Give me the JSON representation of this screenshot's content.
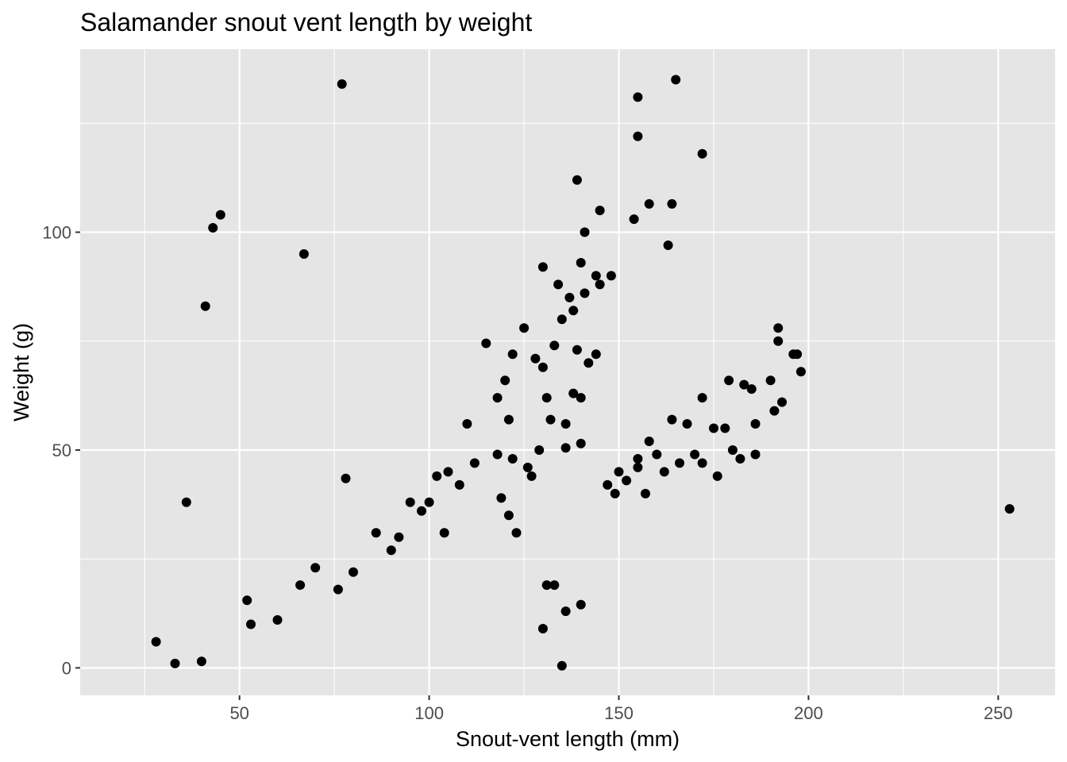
{
  "chart_data": {
    "type": "scatter",
    "title": "Salamander snout vent length by weight",
    "xlabel": "Snout-vent length (mm)",
    "ylabel": "Weight (g)",
    "xlim": [
      8,
      265
    ],
    "ylim": [
      -6.3,
      142
    ],
    "x_ticks": [
      50,
      100,
      150,
      200,
      250
    ],
    "y_ticks": [
      0,
      50,
      100
    ],
    "x_tick_labels": [
      "50",
      "100",
      "150",
      "200",
      "250"
    ],
    "y_tick_labels": [
      "0",
      "50",
      "100"
    ],
    "grid": true,
    "legend": "none",
    "colors": {
      "panel": "#e5e5e5",
      "grid": "#ffffff",
      "points": "#000000",
      "tick_text": "#4d4d4d"
    },
    "series": [
      {
        "values": [
          [
            43,
            101
          ],
          [
            45,
            104
          ],
          [
            41,
            83
          ],
          [
            67,
            95
          ],
          [
            77,
            134
          ],
          [
            36,
            38
          ],
          [
            78,
            43.5
          ],
          [
            139,
            112
          ],
          [
            145,
            105
          ],
          [
            141,
            100
          ],
          [
            154,
            103
          ],
          [
            158,
            106.5
          ],
          [
            164,
            106.5
          ],
          [
            163,
            97
          ],
          [
            155,
            131
          ],
          [
            165,
            135
          ],
          [
            155,
            122
          ],
          [
            172,
            118
          ],
          [
            253,
            36.5
          ],
          [
            130,
            92
          ],
          [
            140,
            93
          ],
          [
            144,
            90
          ],
          [
            148,
            90
          ],
          [
            145,
            88
          ],
          [
            134,
            88
          ],
          [
            137,
            85
          ],
          [
            141,
            86
          ],
          [
            138,
            82
          ],
          [
            135,
            80
          ],
          [
            125,
            78
          ],
          [
            133,
            74
          ],
          [
            139,
            73
          ],
          [
            142,
            70
          ],
          [
            144,
            72
          ],
          [
            115,
            74.5
          ],
          [
            122,
            72
          ],
          [
            128,
            71
          ],
          [
            130,
            69
          ],
          [
            131,
            62
          ],
          [
            138,
            63
          ],
          [
            140,
            62
          ],
          [
            136,
            56
          ],
          [
            132,
            57
          ],
          [
            120,
            66
          ],
          [
            118,
            62
          ],
          [
            121,
            57
          ],
          [
            122,
            48
          ],
          [
            126,
            46
          ],
          [
            127,
            44
          ],
          [
            118,
            49
          ],
          [
            119,
            39
          ],
          [
            121,
            35
          ],
          [
            123,
            31
          ],
          [
            129,
            50
          ],
          [
            136,
            50.5
          ],
          [
            140,
            51.5
          ],
          [
            110,
            56
          ],
          [
            105,
            45
          ],
          [
            108,
            42
          ],
          [
            112,
            47
          ],
          [
            100,
            38
          ],
          [
            102,
            44
          ],
          [
            95,
            38
          ],
          [
            104,
            31
          ],
          [
            98,
            36
          ],
          [
            92,
            30
          ],
          [
            86,
            31
          ],
          [
            90,
            27
          ],
          [
            80,
            22
          ],
          [
            76,
            18
          ],
          [
            70,
            23
          ],
          [
            66,
            19
          ],
          [
            52,
            15.5
          ],
          [
            60,
            11
          ],
          [
            53,
            10
          ],
          [
            130,
            9
          ],
          [
            135,
            0.5
          ],
          [
            131,
            19
          ],
          [
            136,
            13
          ],
          [
            140,
            14.5
          ],
          [
            133,
            19
          ],
          [
            192,
            78
          ],
          [
            196,
            72
          ],
          [
            192,
            75
          ],
          [
            198,
            68
          ],
          [
            197,
            72
          ],
          [
            190,
            66
          ],
          [
            193,
            61
          ],
          [
            191,
            59
          ],
          [
            186,
            56
          ],
          [
            186,
            49
          ],
          [
            179,
            66
          ],
          [
            183,
            65
          ],
          [
            185,
            64
          ],
          [
            172,
            62
          ],
          [
            175,
            55
          ],
          [
            178,
            55
          ],
          [
            168,
            56
          ],
          [
            164,
            57
          ],
          [
            160,
            49
          ],
          [
            158,
            52
          ],
          [
            155,
            48
          ],
          [
            150,
            45
          ],
          [
            147,
            42
          ],
          [
            149,
            40
          ],
          [
            152,
            43
          ],
          [
            155,
            46
          ],
          [
            157,
            40
          ],
          [
            162,
            45
          ],
          [
            166,
            47
          ],
          [
            170,
            49
          ],
          [
            172,
            47
          ],
          [
            176,
            44
          ],
          [
            180,
            50
          ],
          [
            182,
            48
          ],
          [
            28,
            6
          ],
          [
            40,
            1.5
          ],
          [
            33,
            1
          ]
        ]
      }
    ]
  }
}
